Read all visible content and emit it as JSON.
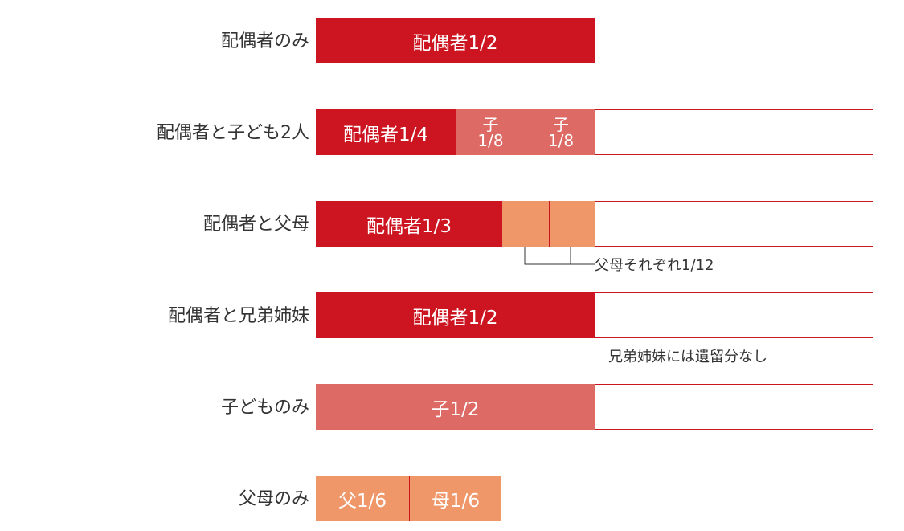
{
  "colors": {
    "spouse": "#cc1520",
    "child": "#dd6a65",
    "parent": "#f0976a",
    "border": "#cc1520",
    "empty": "#ffffff"
  },
  "rows": [
    {
      "label": "配偶者のみ",
      "segments": [
        {
          "role": "spouse",
          "fraction": 0.5,
          "text": "配偶者1/2"
        }
      ]
    },
    {
      "label": "配偶者と子ども2人",
      "segments": [
        {
          "role": "spouse",
          "fraction": 0.25,
          "text": "配偶者1/4"
        },
        {
          "role": "child",
          "fraction": 0.125,
          "top": "子",
          "bottom": "1/8"
        },
        {
          "role": "child",
          "fraction": 0.125,
          "top": "子",
          "bottom": "1/8"
        }
      ]
    },
    {
      "label": "配偶者と父母",
      "segments": [
        {
          "role": "spouse",
          "fraction": 0.3333,
          "text": "配偶者1/3"
        },
        {
          "role": "parent",
          "fraction": 0.0833,
          "text": ""
        },
        {
          "role": "parent",
          "fraction": 0.0833,
          "text": ""
        }
      ],
      "note": "父母それぞれ1/12"
    },
    {
      "label": "配偶者と兄弟姉妹",
      "segments": [
        {
          "role": "spouse",
          "fraction": 0.5,
          "text": "配偶者1/2"
        }
      ],
      "note": "兄弟姉妹には遺留分なし"
    },
    {
      "label": "子どものみ",
      "segments": [
        {
          "role": "child",
          "fraction": 0.5,
          "text": "子1/2"
        }
      ]
    },
    {
      "label": "父母のみ",
      "segments": [
        {
          "role": "parent",
          "fraction": 0.1667,
          "text": "父1/6"
        },
        {
          "role": "parent",
          "fraction": 0.1667,
          "text": "母1/6"
        }
      ]
    }
  ]
}
